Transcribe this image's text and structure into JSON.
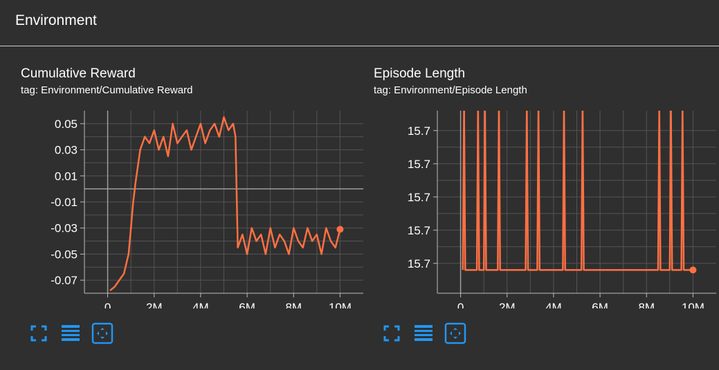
{
  "header": {
    "title": "Environment"
  },
  "cards": [
    {
      "title": "Cumulative Reward",
      "tag": "tag: Environment/Cumulative Reward"
    },
    {
      "title": "Episode Length",
      "tag": "tag: Environment/Episode Length"
    }
  ],
  "toolbar": {
    "icons": [
      "fullscreen-icon",
      "data-download-icon",
      "fit-domain-icon"
    ]
  },
  "colors": {
    "background": "#2f2f2f",
    "line": "#ff7043",
    "grid": "#555555",
    "axis": "#bdbdbd"
  },
  "chart_data": [
    {
      "type": "line",
      "title": "Cumulative Reward",
      "subtitle": "tag: Environment/Cumulative Reward",
      "xlim": [
        -1000000,
        11000000
      ],
      "ylim": [
        -0.08,
        0.06
      ],
      "xticks": [
        0,
        2000000,
        4000000,
        6000000,
        8000000,
        10000000
      ],
      "xtick_labels": [
        "0",
        "2M",
        "4M",
        "6M",
        "8M",
        "10M"
      ],
      "yticks": [
        0.05,
        0.03,
        0.01,
        -0.01,
        -0.03,
        -0.05,
        -0.07
      ],
      "ytick_labels": [
        "0.05",
        "0.03",
        "0.01",
        "-0.01",
        "-0.03",
        "-0.05",
        "-0.07"
      ],
      "grid": true,
      "series": [
        {
          "x": [
            100000,
            300000,
            500000,
            700000,
            900000,
            1000000,
            1100000,
            1200000,
            1400000,
            1600000,
            1800000,
            2000000,
            2200000,
            2400000,
            2600000,
            2800000,
            3000000,
            3200000,
            3400000,
            3600000,
            3800000,
            4000000,
            4200000,
            4400000,
            4600000,
            4800000,
            5000000,
            5200000,
            5400000,
            5500000,
            5600000,
            5800000,
            6000000,
            6200000,
            6400000,
            6600000,
            6800000,
            7000000,
            7200000,
            7400000,
            7600000,
            7800000,
            8000000,
            8200000,
            8400000,
            8600000,
            8800000,
            9000000,
            9200000,
            9400000,
            9600000,
            9800000,
            10000000
          ],
          "y": [
            -0.078,
            -0.075,
            -0.07,
            -0.065,
            -0.05,
            -0.03,
            -0.01,
            0.005,
            0.03,
            0.04,
            0.035,
            0.045,
            0.03,
            0.04,
            0.025,
            0.05,
            0.035,
            0.04,
            0.045,
            0.03,
            0.04,
            0.05,
            0.035,
            0.045,
            0.05,
            0.04,
            0.055,
            0.045,
            0.05,
            0.04,
            -0.045,
            -0.035,
            -0.05,
            -0.03,
            -0.04,
            -0.035,
            -0.05,
            -0.03,
            -0.045,
            -0.035,
            -0.04,
            -0.05,
            -0.03,
            -0.04,
            -0.045,
            -0.03,
            -0.04,
            -0.035,
            -0.05,
            -0.03,
            -0.04,
            -0.045,
            -0.031
          ]
        }
      ]
    },
    {
      "type": "line",
      "title": "Episode Length",
      "subtitle": "tag: Environment/Episode Length",
      "xlim": [
        -1000000,
        11000000
      ],
      "ylim": [
        15.6983,
        15.7038
      ],
      "xticks": [
        0,
        2000000,
        4000000,
        6000000,
        8000000,
        10000000
      ],
      "xtick_labels": [
        "0",
        "2M",
        "4M",
        "6M",
        "8M",
        "10M"
      ],
      "yticks": [
        15.7032,
        15.7022,
        15.7012,
        15.7002,
        15.6992
      ],
      "ytick_labels": [
        "15.7",
        "15.7",
        "15.7",
        "15.7",
        "15.7"
      ],
      "grid": true,
      "series": [
        {
          "x": [
            100000,
            150000,
            200000,
            700000,
            750000,
            800000,
            1000000,
            1050000,
            1100000,
            1600000,
            1650000,
            1700000,
            2800000,
            2850000,
            2900000,
            3300000,
            3350000,
            3400000,
            4400000,
            4450000,
            4500000,
            5200000,
            5250000,
            5300000,
            8500000,
            8550000,
            8600000,
            9000000,
            9050000,
            9100000,
            9500000,
            9550000,
            9600000,
            10000000
          ],
          "y": [
            15.699,
            15.704,
            15.699,
            15.699,
            15.704,
            15.699,
            15.699,
            15.704,
            15.699,
            15.699,
            15.704,
            15.699,
            15.699,
            15.704,
            15.699,
            15.699,
            15.704,
            15.699,
            15.699,
            15.704,
            15.699,
            15.699,
            15.704,
            15.699,
            15.699,
            15.704,
            15.699,
            15.699,
            15.704,
            15.699,
            15.699,
            15.704,
            15.699,
            15.699
          ]
        }
      ]
    }
  ]
}
